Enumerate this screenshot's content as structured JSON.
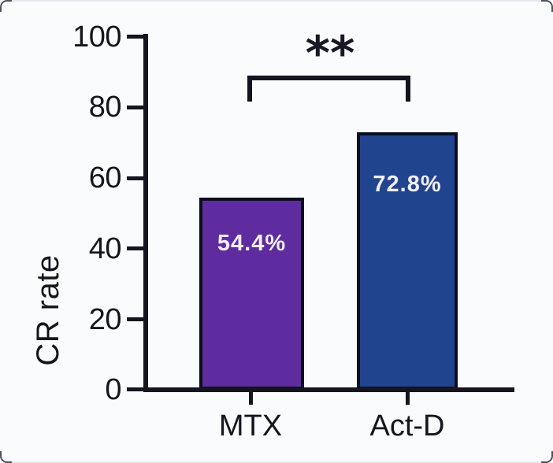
{
  "chart_data": {
    "type": "bar",
    "title": "",
    "ylabel": "CR rate",
    "xlabel": "",
    "categories": [
      "MTX",
      "Act-D"
    ],
    "values": [
      54.4,
      72.8
    ],
    "value_labels": [
      "54.4%",
      "72.8%"
    ],
    "yticks": [
      0,
      20,
      40,
      60,
      80,
      100
    ],
    "ytick_labels_top_to_bottom": [
      "100",
      "80",
      "60",
      "40",
      "20",
      "0"
    ],
    "ylim": [
      0,
      100
    ],
    "grid": false,
    "legend": "none",
    "bar_colors": [
      "#5F2CA0",
      "#21448F"
    ],
    "bar_border_color": "#0C0E20",
    "axis_color": "#16141F",
    "value_text_color": "#F2EEFA",
    "background_color": "#FAFBFD",
    "significance": {
      "label": "**",
      "between": [
        "MTX",
        "Act-D"
      ]
    }
  }
}
